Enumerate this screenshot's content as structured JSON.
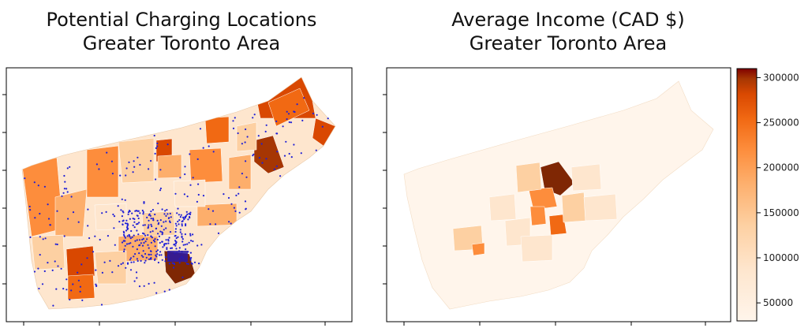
{
  "colors": {
    "map_scale": [
      "#fff5eb",
      "#fee6ce",
      "#fdd0a2",
      "#fdae6b",
      "#fd8d3c",
      "#f16913",
      "#d94801",
      "#a63603",
      "#7f2704"
    ],
    "points": "#1f1fd6",
    "border": "#000000"
  },
  "chart_data": [
    {
      "type": "choropleth-map",
      "title_lines": [
        "Potential Charging Locations",
        "Greater Toronto Area"
      ],
      "overlay": "scatter points (potential charging locations)",
      "xlabel": "",
      "ylabel": "",
      "legend": "none"
    },
    {
      "type": "choropleth-map",
      "title_lines": [
        "Average Income (CAD $)",
        "Greater Toronto Area"
      ],
      "colorbar": {
        "ticks": [
          50000,
          100000,
          150000,
          200000,
          250000,
          300000
        ],
        "tick_labels": [
          "50000",
          "100000",
          "150000",
          "200000",
          "250000",
          "300000"
        ],
        "range": [
          30000,
          310000
        ],
        "colormap": "OrRd",
        "placement": "right"
      },
      "xlabel": "",
      "ylabel": ""
    }
  ]
}
